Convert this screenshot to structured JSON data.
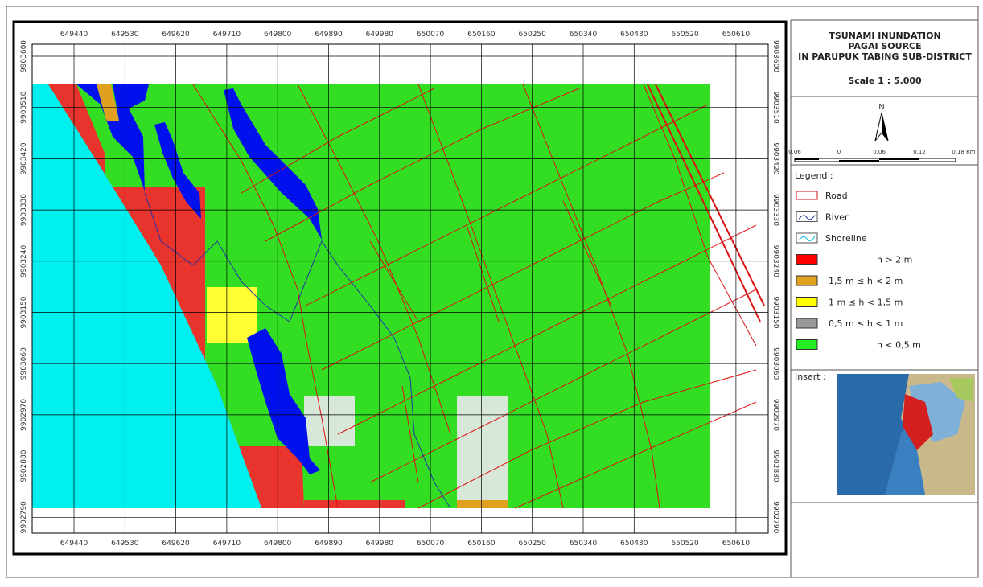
{
  "map": {
    "x_labels": [
      "649440",
      "649530",
      "649620",
      "649710",
      "649800",
      "649890",
      "649980",
      "650070",
      "650160",
      "650250",
      "650340",
      "650430",
      "650520",
      "650610"
    ],
    "y_labels": [
      "9903600",
      "9903510",
      "9903420",
      "9903330",
      "9903240",
      "9903150",
      "9903060",
      "9902970",
      "9902880",
      "9902790"
    ]
  },
  "panel": {
    "title": [
      "TSUNAMI INUNDATION",
      "PAGAI SOURCE",
      "IN PARUPUK TABING SUB-DISTRICT"
    ],
    "scale": "Scale 1 : 5.000",
    "north": "N",
    "scale_bar": [
      "0.06",
      "0",
      "0.06",
      "0.12",
      "0.18 Km"
    ],
    "legend_title": "Legend :",
    "legend": [
      "Road",
      "River",
      "Shoreline",
      "h > 2 m",
      "1,5 m ≤ h < 2 m",
      "1 m ≤ h < 1,5 m",
      "0,5 m ≤ h < 1 m",
      "h < 0,5 m"
    ],
    "insert": "Insert :"
  }
}
